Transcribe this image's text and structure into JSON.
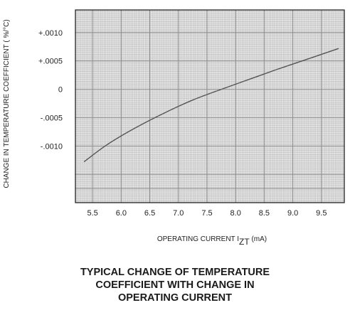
{
  "chart_data": {
    "type": "line",
    "title_lines": [
      "TYPICAL CHANGE OF TEMPERATURE",
      "COEFFICIENT WITH CHANGE IN",
      "OPERATING CURRENT"
    ],
    "xlabel_main": "OPERATING CURRENT I",
    "xlabel_sub": "ZT",
    "xlabel_unit": " (mA)",
    "ylabel": "CHANGE IN TEMPERATURE COEFFICIENT ( %/°C)",
    "x_ticks": [
      "5.5",
      "6.0",
      "6.5",
      "7.0",
      "7.5",
      "8.0",
      "8.5",
      "9.0",
      "9.5"
    ],
    "x_tick_values": [
      5.5,
      6.0,
      6.5,
      7.0,
      7.5,
      8.0,
      8.5,
      9.0,
      9.5
    ],
    "y_ticks": [
      "+.0010",
      "+.0005",
      "0",
      "-.0005",
      "-.0010"
    ],
    "y_tick_values": [
      0.001,
      0.0005,
      0,
      -0.0005,
      -0.001
    ],
    "xlim": [
      5.2,
      9.9
    ],
    "ylim": [
      -0.002,
      0.0014
    ],
    "grid": true,
    "series": [
      {
        "x": [
          5.35,
          5.75,
          6.25,
          6.75,
          7.25,
          7.75,
          8.25,
          8.75,
          9.25,
          9.8
        ],
        "values": [
          -0.00128,
          -0.00098,
          -0.00068,
          -0.00042,
          -0.00019,
          0.0,
          0.00018,
          0.00036,
          0.00053,
          0.00072
        ]
      }
    ],
    "colors": {
      "line": "#555555",
      "grid": "#bdbdbd",
      "frame": "#222222"
    }
  }
}
